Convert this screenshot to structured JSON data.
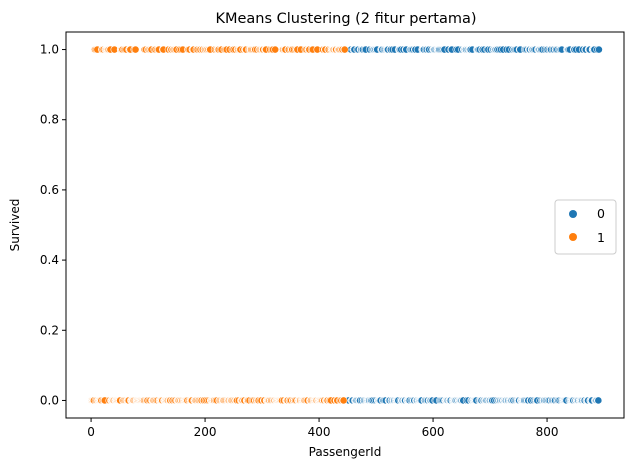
{
  "chart_data": {
    "type": "scatter",
    "title": "KMeans Clustering (2 fitur pertama)",
    "xlabel": "PassengerId",
    "ylabel": "Survived",
    "xlim": [
      -44,
      935
    ],
    "ylim": [
      -0.05,
      1.05
    ],
    "xticks": [
      0,
      200,
      400,
      600,
      800
    ],
    "yticks": [
      0.0,
      0.2,
      0.4,
      0.6,
      0.8,
      1.0
    ],
    "xtick_labels": [
      "0",
      "200",
      "400",
      "600",
      "800"
    ],
    "ytick_labels": [
      "0.0",
      "0.2",
      "0.4",
      "0.6",
      "0.8",
      "1.0"
    ],
    "grid": false,
    "legend": {
      "placement": "center-right",
      "entries": [
        "0",
        "1"
      ]
    },
    "series": [
      {
        "name": "0",
        "color": "#1f77b4",
        "x_range": [
          446,
          891
        ],
        "y_values": [
          0,
          1
        ]
      },
      {
        "name": "1",
        "color": "#ff7f0e",
        "x_range": [
          1,
          445
        ],
        "y_values": [
          0,
          1
        ]
      }
    ]
  }
}
